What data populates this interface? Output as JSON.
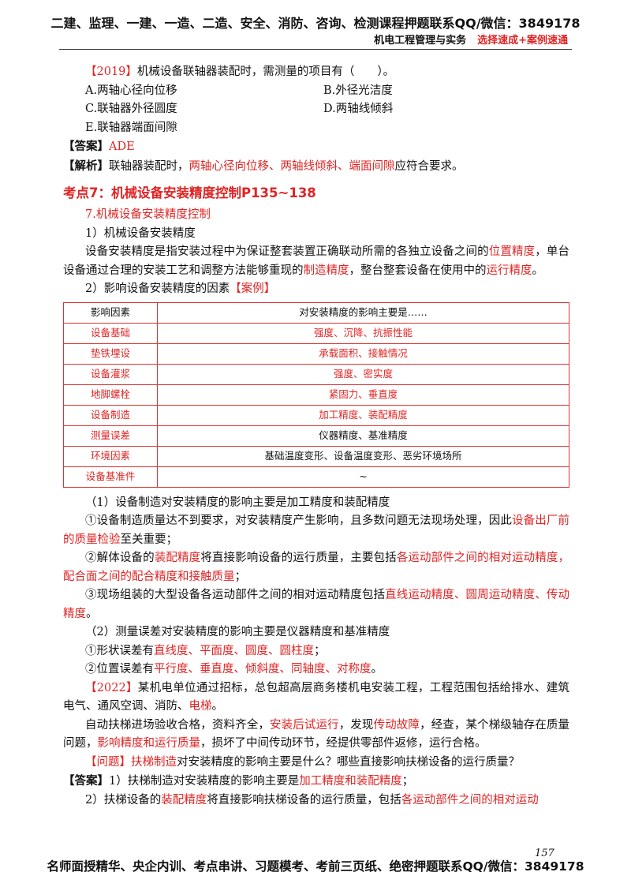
{
  "header": {
    "line1": "二建、监理、一建、一造、二造、安全、消防、咨询、检测课程押题联系QQ/微信：3849178",
    "subject": "机电工程管理与实务",
    "tagline": "选择速成+案例速通"
  },
  "blocks": [
    {
      "runs": [
        {
          "text": "【2019】",
          "color": "red"
        },
        {
          "text": "机械设备联轴器装配时，需测量的项目有（　　）。"
        }
      ]
    },
    {
      "options": [
        "A.两轴心径向位移",
        "B.外径光洁度"
      ]
    },
    {
      "options": [
        "C.联轴器外径圆度",
        "D.两轴线倾斜"
      ]
    },
    {
      "options": [
        "E.联轴器端面间隙"
      ]
    },
    {
      "runs": [
        {
          "text": "【答案】",
          "bold": true
        },
        {
          "text": "ADE",
          "color": "red"
        }
      ]
    },
    {
      "runs": [
        {
          "text": "【解析】",
          "bold": true
        },
        {
          "text": "联轴器装配时，"
        },
        {
          "text": "两轴心径向位移、两轴线倾斜、端面间隙",
          "color": "red"
        },
        {
          "text": "应符合要求。"
        }
      ]
    },
    {
      "heading": "考点7：机械设备安装精度控制P135~138"
    },
    {
      "runs": [
        {
          "text": "7.机械设备安装精度控制",
          "color": "red"
        }
      ]
    },
    {
      "runs": [
        {
          "text": "1）机械设备安装精度"
        }
      ]
    },
    {
      "runs": [
        {
          "text": "设备安装精度是指安装过程中为保证整套装置正确联动所需的各独立设备之间的"
        },
        {
          "text": "位置精度",
          "color": "red"
        },
        {
          "text": "，单台设备通过合理的安装工艺和调整方法能够重现的"
        },
        {
          "text": "制造精度",
          "color": "red"
        },
        {
          "text": "，整台整套设备在使用中的"
        },
        {
          "text": "运行精度",
          "color": "red"
        },
        {
          "text": "。"
        }
      ]
    },
    {
      "runs": [
        {
          "text": "2）影响设备安装精度的因素"
        },
        {
          "text": "【案例】",
          "color": "red"
        }
      ]
    }
  ],
  "table": {
    "header": [
      "影响因素",
      "对安装精度的影响主要是……"
    ],
    "rows": [
      [
        {
          "text": "设备基础",
          "color": "red"
        },
        {
          "text": "强度、沉降、抗振性能",
          "color": "red"
        }
      ],
      [
        {
          "text": "垫铁埋设",
          "color": "red"
        },
        {
          "text": "承载面积、接触情况",
          "color": "red"
        }
      ],
      [
        {
          "text": "设备灌浆",
          "color": "red"
        },
        {
          "text": "强度、密实度",
          "color": "red"
        }
      ],
      [
        {
          "text": "地脚螺栓",
          "color": "red"
        },
        {
          "text": "紧固力、垂直度",
          "color": "red"
        }
      ],
      [
        {
          "text": "设备制造",
          "color": "red"
        },
        {
          "text": "加工精度、装配精度",
          "color": "red"
        }
      ],
      [
        {
          "text": "测量误差",
          "color": "red"
        },
        {
          "text": "仪器精度、基准精度"
        }
      ],
      [
        {
          "text": "环境因素",
          "color": "red"
        },
        {
          "text": "基础温度变形、设备温度变形、恶劣环境场所"
        }
      ],
      [
        {
          "text": "设备基准件",
          "color": "red"
        },
        {
          "text": "~"
        }
      ]
    ]
  },
  "blocks_after": [
    {
      "runs": [
        {
          "text": "（1）设备制造对安装精度的影响主要是加工精度和装配精度"
        }
      ]
    },
    {
      "runs": [
        {
          "text": "①设备制造质量达不到要求，对安装精度产生影响，且多数问题无法现场处理，因此"
        },
        {
          "text": "设备出厂前的质量检验",
          "color": "red"
        },
        {
          "text": "至关重要；"
        }
      ]
    },
    {
      "runs": [
        {
          "text": "②解体设备的"
        },
        {
          "text": "装配精度",
          "color": "red"
        },
        {
          "text": "将直接影响设备的运行质量，主要包括"
        },
        {
          "text": "各运动部件之间的相对运动精度，配合面之间的配合精度和接触质量",
          "color": "red"
        },
        {
          "text": "；"
        }
      ]
    },
    {
      "runs": [
        {
          "text": "③现场组装的大型设备各运动部件之间的相对运动精度包括"
        },
        {
          "text": "直线运动精度、圆周运动精度、传动精度",
          "color": "red"
        },
        {
          "text": "。"
        }
      ]
    },
    {
      "runs": [
        {
          "text": "（2）测量误差对安装精度的影响主要是仪器精度和基准精度"
        }
      ]
    },
    {
      "runs": [
        {
          "text": "①形状误差有"
        },
        {
          "text": "直线度、平面度、圆度、圆柱度",
          "color": "red"
        },
        {
          "text": "；"
        }
      ]
    },
    {
      "runs": [
        {
          "text": "②位置误差有"
        },
        {
          "text": "平行度、垂直度、倾斜度、同轴度、对称度",
          "color": "red"
        },
        {
          "text": "。"
        }
      ]
    },
    {
      "runs": [
        {
          "text": "【2022】",
          "color": "red"
        },
        {
          "text": "某机电单位通过招标，总包超高层商务楼机电安装工程，工程范围包括给排水、建筑电气、通风空调、消防、"
        },
        {
          "text": "电梯",
          "color": "red"
        },
        {
          "text": "。"
        }
      ]
    },
    {
      "runs": [
        {
          "text": "自动扶梯进场验收合格，资料齐全，"
        },
        {
          "text": "安装后试运行",
          "color": "red"
        },
        {
          "text": "，发现"
        },
        {
          "text": "传动故障",
          "color": "red"
        },
        {
          "text": "，经查，某个梯级轴存在质量问题，"
        },
        {
          "text": "影响精度和运行质量",
          "color": "red"
        },
        {
          "text": "，损坏了中间传动环节，经提供零部件返修，运行合格。"
        }
      ]
    },
    {
      "runs": [
        {
          "text": "【问题】扶梯制造",
          "color": "red"
        },
        {
          "text": "对安装精度的影响主要是什么？哪些直接影响扶梯设备的运行质量？"
        }
      ]
    },
    {
      "runs": [
        {
          "text": "【答案】",
          "bold": true
        },
        {
          "text": "1）扶梯制造对安装精度的影响主要是"
        },
        {
          "text": "加工精度和装配精度",
          "color": "red"
        },
        {
          "text": "；"
        }
      ]
    },
    {
      "runs": [
        {
          "text": "2）扶梯设备的"
        },
        {
          "text": "装配精度",
          "color": "red"
        },
        {
          "text": "将直接影响扶梯设备的运行质量，包括"
        },
        {
          "text": "各运动部件之间的相对运动",
          "color": "red"
        }
      ]
    }
  ],
  "footer": {
    "text": "名师面授精华、央企内训、考点串讲、习题模考、考前三页纸、绝密押题联系QQ/微信：3849178",
    "page": "157"
  }
}
